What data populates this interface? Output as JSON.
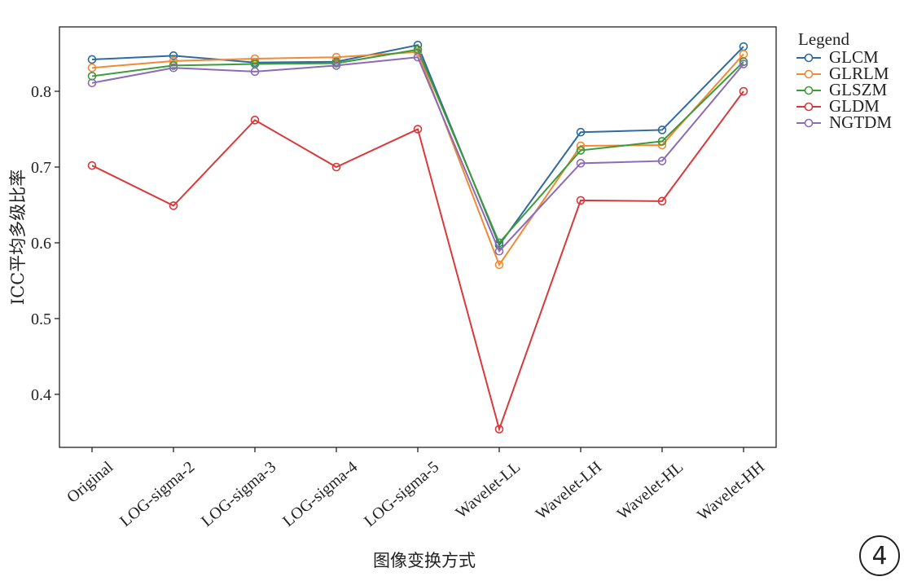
{
  "chart_data": {
    "type": "line",
    "xlabel": "图像变换方式",
    "ylabel": "ICC平均多级比率",
    "categories": [
      "Original",
      "LOG-sigma-2",
      "LOG-sigma-3",
      "LOG-sigma-4",
      "LOG-sigma-5",
      "Wavelet-LL",
      "Wavelet-LH",
      "Wavelet-HL",
      "Wavelet-HH"
    ],
    "ylim": [
      0.33,
      0.885
    ],
    "yticks": [
      0.4,
      0.5,
      0.6,
      0.7,
      0.8
    ],
    "ytick_labels": [
      "0.4",
      "0.5",
      "0.6",
      "0.7",
      "0.8"
    ],
    "grid": false,
    "legend_title": "Legend",
    "legend_position": "outside-top-right",
    "series": [
      {
        "name": "GLCM",
        "color": "#2e6b9e",
        "values": [
          0.842,
          0.847,
          0.838,
          0.839,
          0.861,
          0.597,
          0.746,
          0.749,
          0.859
        ]
      },
      {
        "name": "GLRLM",
        "color": "#f08a35",
        "values": [
          0.831,
          0.84,
          0.843,
          0.845,
          0.852,
          0.571,
          0.728,
          0.729,
          0.849
        ]
      },
      {
        "name": "GLSZM",
        "color": "#3f9a3a",
        "values": [
          0.82,
          0.834,
          0.836,
          0.837,
          0.855,
          0.6,
          0.722,
          0.734,
          0.839
        ]
      },
      {
        "name": "GLDM",
        "color": "#d9393a",
        "values": [
          0.702,
          0.649,
          0.762,
          0.7,
          0.75,
          0.354,
          0.656,
          0.655,
          0.8
        ]
      },
      {
        "name": "NGTDM",
        "color": "#8c6bb6",
        "values": [
          0.811,
          0.831,
          0.826,
          0.834,
          0.845,
          0.589,
          0.705,
          0.708,
          0.836
        ]
      }
    ]
  },
  "badge": {
    "text": "4"
  }
}
